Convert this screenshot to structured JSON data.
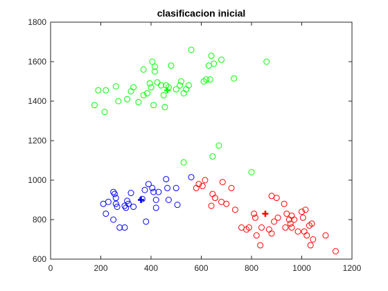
{
  "chart_data": {
    "type": "scatter",
    "title": "clasificacion inicial",
    "xlabel": "",
    "ylabel": "",
    "xlim": [
      0,
      1200
    ],
    "ylim": [
      600,
      1800
    ],
    "xticks": [
      "0",
      "200",
      "400",
      "600",
      "800",
      "1000",
      "1200"
    ],
    "yticks": [
      "600",
      "800",
      "1000",
      "1200",
      "1400",
      "1600",
      "1800"
    ],
    "grid": false,
    "legend": "none",
    "series": [
      {
        "color": "#0000ff",
        "marker": "circle-open",
        "points": [
          [
            210,
            880
          ],
          [
            220,
            830
          ],
          [
            230,
            890
          ],
          [
            250,
            940
          ],
          [
            255,
            930
          ],
          [
            260,
            910
          ],
          [
            260,
            880
          ],
          [
            250,
            800
          ],
          [
            265,
            865
          ],
          [
            275,
            760
          ],
          [
            295,
            760
          ],
          [
            295,
            870
          ],
          [
            305,
            895
          ],
          [
            310,
            880
          ],
          [
            320,
            935
          ],
          [
            330,
            865
          ],
          [
            365,
            905
          ],
          [
            375,
            950
          ],
          [
            390,
            980
          ],
          [
            405,
            960
          ],
          [
            410,
            940
          ],
          [
            420,
            900
          ],
          [
            420,
            860
          ],
          [
            430,
            940
          ],
          [
            460,
            1005
          ],
          [
            465,
            960
          ],
          [
            470,
            900
          ],
          [
            500,
            960
          ],
          [
            505,
            875
          ],
          [
            560,
            1015
          ],
          [
            300,
            860
          ],
          [
            380,
            790
          ]
        ]
      },
      {
        "color": "#ff0000",
        "marker": "circle-open",
        "points": [
          [
            580,
            960
          ],
          [
            590,
            980
          ],
          [
            605,
            970
          ],
          [
            615,
            1000
          ],
          [
            640,
            870
          ],
          [
            645,
            930
          ],
          [
            655,
            910
          ],
          [
            680,
            890
          ],
          [
            685,
            990
          ],
          [
            700,
            880
          ],
          [
            720,
            960
          ],
          [
            735,
            850
          ],
          [
            760,
            760
          ],
          [
            780,
            750
          ],
          [
            790,
            760
          ],
          [
            810,
            830
          ],
          [
            815,
            810
          ],
          [
            820,
            720
          ],
          [
            835,
            670
          ],
          [
            840,
            760
          ],
          [
            870,
            750
          ],
          [
            880,
            920
          ],
          [
            890,
            790
          ],
          [
            900,
            910
          ],
          [
            905,
            810
          ],
          [
            930,
            880
          ],
          [
            935,
            760
          ],
          [
            940,
            830
          ],
          [
            950,
            800
          ],
          [
            955,
            780
          ],
          [
            960,
            760
          ],
          [
            970,
            800
          ],
          [
            985,
            740
          ],
          [
            1000,
            840
          ],
          [
            1005,
            810
          ],
          [
            1010,
            740
          ],
          [
            1015,
            850
          ],
          [
            1020,
            720
          ],
          [
            1030,
            770
          ],
          [
            1035,
            670
          ],
          [
            1040,
            780
          ],
          [
            1045,
            700
          ],
          [
            1095,
            720
          ],
          [
            1135,
            640
          ],
          [
            960,
            820
          ],
          [
            880,
            730
          ]
        ]
      },
      {
        "color": "#00ff00",
        "marker": "circle-open",
        "points": [
          [
            175,
            1380
          ],
          [
            190,
            1455
          ],
          [
            215,
            1345
          ],
          [
            220,
            1455
          ],
          [
            260,
            1475
          ],
          [
            270,
            1400
          ],
          [
            305,
            1410
          ],
          [
            320,
            1450
          ],
          [
            330,
            1470
          ],
          [
            350,
            1395
          ],
          [
            370,
            1560
          ],
          [
            370,
            1430
          ],
          [
            385,
            1440
          ],
          [
            395,
            1490
          ],
          [
            400,
            1470
          ],
          [
            405,
            1600
          ],
          [
            410,
            1380
          ],
          [
            415,
            1575
          ],
          [
            415,
            1550
          ],
          [
            425,
            1495
          ],
          [
            440,
            1480
          ],
          [
            450,
            1430
          ],
          [
            455,
            1370
          ],
          [
            460,
            1480
          ],
          [
            470,
            1470
          ],
          [
            480,
            1580
          ],
          [
            500,
            1460
          ],
          [
            515,
            1480
          ],
          [
            520,
            1500
          ],
          [
            530,
            1440
          ],
          [
            540,
            1460
          ],
          [
            550,
            1480
          ],
          [
            560,
            1660
          ],
          [
            610,
            1500
          ],
          [
            620,
            1510
          ],
          [
            630,
            1580
          ],
          [
            635,
            1510
          ],
          [
            640,
            1630
          ],
          [
            650,
            1590
          ],
          [
            680,
            1610
          ],
          [
            730,
            1515
          ],
          [
            860,
            1600
          ],
          [
            530,
            1090
          ],
          [
            645,
            1120
          ],
          [
            670,
            1175
          ],
          [
            800,
            1040
          ]
        ]
      }
    ],
    "centroids": [
      {
        "color": "#0000ff",
        "marker": "plus",
        "x": 360,
        "y": 900
      },
      {
        "color": "#ff0000",
        "marker": "plus",
        "x": 855,
        "y": 830
      },
      {
        "color": "#00ff00",
        "marker": "plus",
        "x": 465,
        "y": 1455
      }
    ]
  }
}
